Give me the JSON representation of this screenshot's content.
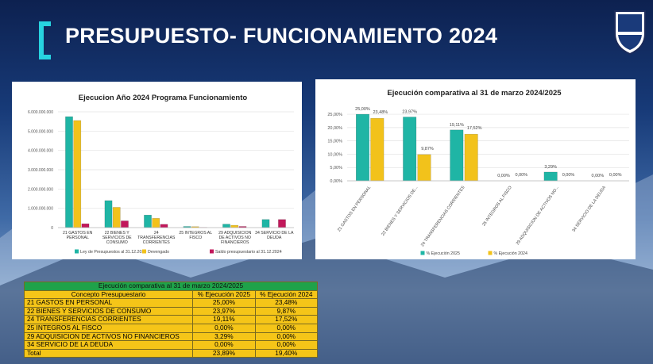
{
  "slide_title": "PRESUPUESTO- FUNCIONAMIENTO 2024",
  "chart_data": [
    {
      "type": "bar",
      "title": "Ejecucion Año 2024 Programa Funcionamiento",
      "categories": [
        "21 GASTOS EN PERSONAL",
        "22 BIENES Y SERVICIOS DE CONSUMO",
        "24 TRANSFERENCIAS CORRIENTES",
        "25 INTEGROS AL FISCO",
        "29 ADQUISICION DE ACTIVOS NO FINANCIEROS",
        "34 SERVICIO DE LA DEUDA"
      ],
      "series": [
        {
          "name": "Ley de Presupuestos  al 31.12.2024",
          "color": "#1fb5a5",
          "values": [
            5750000000,
            1400000000,
            650000000,
            60000000,
            180000000,
            420000000
          ]
        },
        {
          "name": "Devengado",
          "color": "#f2c21b",
          "values": [
            5550000000,
            1050000000,
            480000000,
            50000000,
            120000000,
            0
          ]
        },
        {
          "name": "Saldo presupuestario al 31.12.2024",
          "color": "#c2185b",
          "values": [
            200000000,
            350000000,
            170000000,
            10000000,
            60000000,
            420000000
          ]
        }
      ],
      "ylim": [
        0,
        6000000000
      ],
      "yticks": [
        {
          "value": 0,
          "label": "0"
        },
        {
          "value": 1000000000,
          "label": "1.000.000.000"
        },
        {
          "value": 2000000000,
          "label": "2.000.000.000"
        },
        {
          "value": 3000000000,
          "label": "3.000.000.000"
        },
        {
          "value": 4000000000,
          "label": "4.000.000.000"
        },
        {
          "value": 5000000000,
          "label": "5.000.000.000"
        },
        {
          "value": 6000000000,
          "label": "6.000.000.000"
        }
      ],
      "grid": true,
      "legend": "bottom"
    },
    {
      "type": "bar",
      "title": "Ejecución comparativa al 31 de marzo 2024/2025",
      "categories": [
        "21 GASTOS EN PERSONAL",
        "22 BIENES Y SERVICIOS DE...",
        "24 TRANSFERENCIAS CORRIENTES",
        "25 INTEGROS AL FISCO",
        "29 ADQUISICION DE ACTIVOS NO...",
        "34 SERVICIO DE LA DEUDA"
      ],
      "series": [
        {
          "name": "% Ejecución 2025",
          "color": "#1fb5a5",
          "values": [
            25.0,
            23.97,
            19.11,
            0.0,
            3.29,
            0.0
          ],
          "value_labels": [
            "25,00%",
            "23,97%",
            "19,11%",
            "0,00%",
            "3,29%",
            "0,00%"
          ]
        },
        {
          "name": "% Ejecución 2024",
          "color": "#f2c21b",
          "values": [
            23.48,
            9.87,
            17.52,
            0.0,
            0.0,
            0.0
          ],
          "value_labels": [
            "23,48%",
            "9,87%",
            "17,52%",
            "0,00%",
            "0,00%",
            "0,00%"
          ]
        }
      ],
      "ylim": [
        0,
        28
      ],
      "yticks": [
        {
          "value": 0,
          "label": "0,00%"
        },
        {
          "value": 5,
          "label": "5,00%"
        },
        {
          "value": 10,
          "label": "10,00%"
        },
        {
          "value": 15,
          "label": "15,00%"
        },
        {
          "value": 20,
          "label": "20,00%"
        },
        {
          "value": 25,
          "label": "25,00%"
        }
      ],
      "grid": true,
      "legend": "bottom"
    }
  ],
  "table": {
    "title": "Ejecución comparativa al 31 de marzo 2024/2025",
    "header": [
      "Concepto Presupuestario",
      "% Ejecución 2025",
      "% Ejecución 2024"
    ],
    "rows": [
      [
        "21 GASTOS EN PERSONAL",
        "25,00%",
        "23,48%"
      ],
      [
        "22 BIENES Y SERVICIOS DE CONSUMO",
        "23,97%",
        "9,87%"
      ],
      [
        "24 TRANSFERENCIAS CORRIENTES",
        "19,11%",
        "17,52%"
      ],
      [
        "25 INTEGROS AL FISCO",
        "0,00%",
        "0,00%"
      ],
      [
        "29 ADQUISICION DE ACTIVOS NO FINANCIEROS",
        "3,29%",
        "0,00%"
      ],
      [
        "34 SERVICIO DE LA DEUDA",
        "0,00%",
        "0,00%"
      ],
      [
        "Total",
        "23,89%",
        "19,40%"
      ]
    ]
  }
}
